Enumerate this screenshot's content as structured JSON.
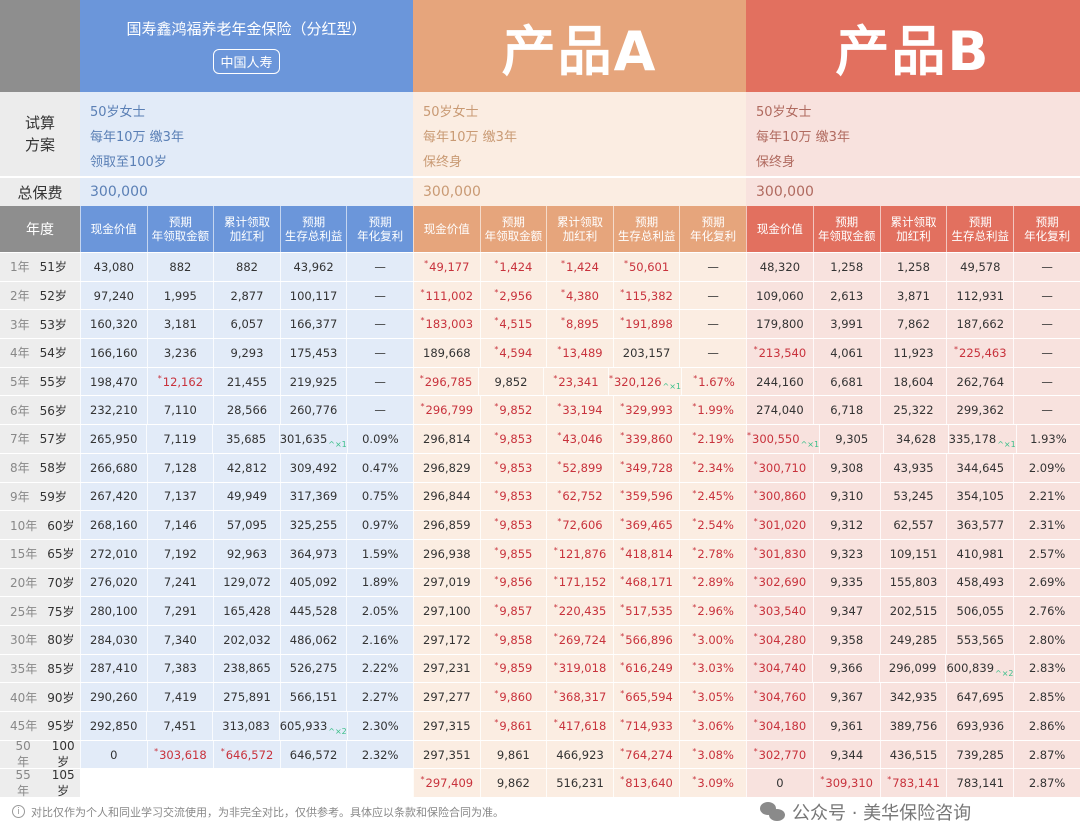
{
  "products": [
    {
      "key": "blue",
      "title": "国寿鑫鸿福养老年金保险（分红型）",
      "company": "中国人寿",
      "plan": [
        "50岁女士",
        "每年10万 缴3年",
        "领取至100岁"
      ],
      "premium": "300,000"
    },
    {
      "key": "a",
      "title": "产品A",
      "plan": [
        "50岁女士",
        "每年10万 缴3年",
        "保终身"
      ],
      "premium": "300,000"
    },
    {
      "key": "b",
      "title": "产品B",
      "plan": [
        "50岁女士",
        "每年10万 缴3年",
        "保终身"
      ],
      "premium": "300,000"
    }
  ],
  "labels": {
    "plan": "试算\n方案",
    "premium": "总保费",
    "year": "年度"
  },
  "columns": [
    "现金价值",
    "预期\n年领取金额",
    "累计领取\n加红利",
    "预期\n生存总利益",
    "预期\n年化复利"
  ],
  "years": [
    [
      "1年",
      "51岁"
    ],
    [
      "2年",
      "52岁"
    ],
    [
      "3年",
      "53岁"
    ],
    [
      "4年",
      "54岁"
    ],
    [
      "5年",
      "55岁"
    ],
    [
      "6年",
      "56岁"
    ],
    [
      "7年",
      "57岁"
    ],
    [
      "8年",
      "58岁"
    ],
    [
      "9年",
      "59岁"
    ],
    [
      "10年",
      "60岁"
    ],
    [
      "15年",
      "65岁"
    ],
    [
      "20年",
      "70岁"
    ],
    [
      "25年",
      "75岁"
    ],
    [
      "30年",
      "80岁"
    ],
    [
      "35年",
      "85岁"
    ],
    [
      "40年",
      "90岁"
    ],
    [
      "45年",
      "95岁"
    ],
    [
      "50年",
      "100岁"
    ],
    [
      "55年",
      "105岁"
    ]
  ],
  "rows": {
    "blue": [
      [
        "43,080",
        "882",
        "882",
        "43,962",
        "—"
      ],
      [
        "97,240",
        "1,995",
        "2,877",
        "100,117",
        "—"
      ],
      [
        "160,320",
        "3,181",
        "6,057",
        "166,377",
        "—"
      ],
      [
        "166,160",
        "3,236",
        "9,293",
        "175,453",
        "—"
      ],
      [
        "198,470",
        "*12,162",
        "21,455",
        "219,925",
        "—"
      ],
      [
        "232,210",
        "7,110",
        "28,566",
        "260,776",
        "—"
      ],
      [
        "265,950",
        "7,119",
        "35,685",
        "301,635^×1",
        "0.09%"
      ],
      [
        "266,680",
        "7,128",
        "42,812",
        "309,492",
        "0.47%"
      ],
      [
        "267,420",
        "7,137",
        "49,949",
        "317,369",
        "0.75%"
      ],
      [
        "268,160",
        "7,146",
        "57,095",
        "325,255",
        "0.97%"
      ],
      [
        "272,010",
        "7,192",
        "92,963",
        "364,973",
        "1.59%"
      ],
      [
        "276,020",
        "7,241",
        "129,072",
        "405,092",
        "1.89%"
      ],
      [
        "280,100",
        "7,291",
        "165,428",
        "445,528",
        "2.05%"
      ],
      [
        "284,030",
        "7,340",
        "202,032",
        "486,062",
        "2.16%"
      ],
      [
        "287,410",
        "7,383",
        "238,865",
        "526,275",
        "2.22%"
      ],
      [
        "290,260",
        "7,419",
        "275,891",
        "566,151",
        "2.27%"
      ],
      [
        "292,850",
        "7,451",
        "313,083",
        "605,933^×2",
        "2.30%"
      ],
      [
        "0",
        "*303,618",
        "*646,572",
        "646,572",
        "2.32%"
      ],
      null
    ],
    "a": [
      [
        "*49,177",
        "*1,424",
        "*1,424",
        "*50,601",
        "—"
      ],
      [
        "*111,002",
        "*2,956",
        "*4,380",
        "*115,382",
        "—"
      ],
      [
        "*183,003",
        "*4,515",
        "*8,895",
        "*191,898",
        "—"
      ],
      [
        "189,668",
        "*4,594",
        "*13,489",
        "203,157",
        "—"
      ],
      [
        "*296,785",
        "9,852",
        "*23,341",
        "*320,126^×1",
        "*1.67%"
      ],
      [
        "*296,799",
        "*9,852",
        "*33,194",
        "*329,993",
        "*1.99%"
      ],
      [
        "296,814",
        "*9,853",
        "*43,046",
        "*339,860",
        "*2.19%"
      ],
      [
        "296,829",
        "*9,853",
        "*52,899",
        "*349,728",
        "*2.34%"
      ],
      [
        "296,844",
        "*9,853",
        "*62,752",
        "*359,596",
        "*2.45%"
      ],
      [
        "296,859",
        "*9,853",
        "*72,606",
        "*369,465",
        "*2.54%"
      ],
      [
        "296,938",
        "*9,855",
        "*121,876",
        "*418,814",
        "*2.78%"
      ],
      [
        "297,019",
        "*9,856",
        "*171,152",
        "*468,171",
        "*2.89%"
      ],
      [
        "297,100",
        "*9,857",
        "*220,435",
        "*517,535",
        "*2.96%"
      ],
      [
        "297,172",
        "*9,858",
        "*269,724",
        "*566,896",
        "*3.00%"
      ],
      [
        "297,231",
        "*9,859",
        "*319,018",
        "*616,249",
        "*3.03%"
      ],
      [
        "297,277",
        "*9,860",
        "*368,317",
        "*665,594",
        "*3.05%"
      ],
      [
        "297,315",
        "*9,861",
        "*417,618",
        "*714,933",
        "*3.06%"
      ],
      [
        "297,351",
        "9,861",
        "466,923",
        "*764,274",
        "*3.08%"
      ],
      [
        "*297,409",
        "9,862",
        "516,231",
        "*813,640",
        "*3.09%"
      ]
    ],
    "b": [
      [
        "48,320",
        "1,258",
        "1,258",
        "49,578",
        "—"
      ],
      [
        "109,060",
        "2,613",
        "3,871",
        "112,931",
        "—"
      ],
      [
        "179,800",
        "3,991",
        "7,862",
        "187,662",
        "—"
      ],
      [
        "*213,540",
        "4,061",
        "11,923",
        "*225,463",
        "—"
      ],
      [
        "244,160",
        "6,681",
        "18,604",
        "262,764",
        "—"
      ],
      [
        "274,040",
        "6,718",
        "25,322",
        "299,362",
        "—"
      ],
      [
        "*300,550^×1",
        "9,305",
        "34,628",
        "335,178^×1",
        "1.93%"
      ],
      [
        "*300,710",
        "9,308",
        "43,935",
        "344,645",
        "2.09%"
      ],
      [
        "*300,860",
        "9,310",
        "53,245",
        "354,105",
        "2.21%"
      ],
      [
        "*301,020",
        "9,312",
        "62,557",
        "363,577",
        "2.31%"
      ],
      [
        "*301,830",
        "9,323",
        "109,151",
        "410,981",
        "2.57%"
      ],
      [
        "*302,690",
        "9,335",
        "155,803",
        "458,493",
        "2.69%"
      ],
      [
        "*303,540",
        "9,347",
        "202,515",
        "506,055",
        "2.76%"
      ],
      [
        "*304,280",
        "9,358",
        "249,285",
        "553,565",
        "2.80%"
      ],
      [
        "*304,740",
        "9,366",
        "296,099",
        "600,839^×2",
        "2.83%"
      ],
      [
        "*304,760",
        "9,367",
        "342,935",
        "647,695",
        "2.85%"
      ],
      [
        "*304,180",
        "9,361",
        "389,756",
        "693,936",
        "2.86%"
      ],
      [
        "*302,770",
        "9,344",
        "436,515",
        "739,285",
        "2.87%"
      ],
      [
        "0",
        "*309,310",
        "*783,141",
        "783,141",
        "2.87%"
      ]
    ]
  },
  "footer": "对比仅作为个人和同业学习交流使用，为非完全对比，仅供参考。具体应以条款和保险合同为准。",
  "watermark": "公众号 · 美华保险咨询",
  "colors": {
    "blue": "#6b96da",
    "a": "#e6a57c",
    "b": "#e2705f",
    "red": "#c8323c"
  }
}
